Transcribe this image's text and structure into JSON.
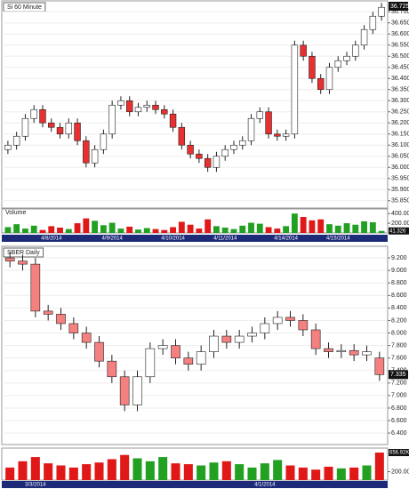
{
  "chart_data": [
    {
      "type": "candlestick",
      "title": "Si 60 Minute",
      "volume_title": "Volume",
      "categories": [
        null,
        null,
        null,
        null,
        null,
        "4/8/2014",
        null,
        null,
        null,
        null,
        null,
        null,
        "4/9/2014",
        null,
        null,
        null,
        null,
        null,
        null,
        "4/10/2014",
        null,
        null,
        null,
        null,
        null,
        "4/11/2014",
        null,
        null,
        null,
        null,
        null,
        null,
        "4/14/2014",
        null,
        null,
        null,
        null,
        null,
        "4/15/2014",
        null,
        null,
        null,
        null,
        null
      ],
      "open": [
        36.08,
        36.1,
        36.14,
        36.22,
        36.26,
        36.2,
        36.18,
        36.15,
        36.2,
        36.12,
        36.02,
        36.08,
        36.15,
        36.28,
        36.3,
        36.25,
        36.27,
        36.28,
        36.26,
        36.24,
        36.18,
        36.1,
        36.06,
        36.04,
        36.0,
        36.05,
        36.08,
        36.1,
        36.12,
        36.22,
        36.25,
        36.15,
        36.14,
        36.15,
        36.55,
        36.5,
        36.4,
        36.35,
        36.45,
        36.48,
        36.5,
        36.55,
        36.62,
        36.68
      ],
      "high": [
        36.12,
        36.16,
        36.24,
        36.28,
        36.28,
        36.22,
        36.2,
        36.22,
        36.22,
        36.14,
        36.1,
        36.17,
        36.3,
        36.32,
        36.32,
        36.29,
        36.3,
        36.3,
        36.28,
        36.26,
        36.2,
        36.12,
        36.08,
        36.06,
        36.07,
        36.1,
        36.12,
        36.14,
        36.24,
        36.27,
        36.27,
        36.17,
        36.17,
        36.57,
        36.57,
        36.52,
        36.42,
        36.47,
        36.5,
        36.52,
        36.57,
        36.64,
        36.7,
        36.74
      ],
      "low": [
        36.06,
        36.08,
        36.12,
        36.2,
        36.18,
        36.16,
        36.13,
        36.13,
        36.1,
        36.0,
        36.0,
        36.06,
        36.13,
        36.26,
        36.23,
        36.23,
        36.25,
        36.24,
        36.22,
        36.16,
        36.08,
        36.04,
        36.02,
        35.98,
        35.98,
        36.03,
        36.06,
        36.08,
        36.1,
        36.2,
        36.13,
        36.12,
        36.12,
        36.13,
        36.48,
        36.38,
        36.33,
        36.33,
        36.43,
        36.46,
        36.48,
        36.53,
        36.6,
        36.66
      ],
      "close": [
        36.1,
        36.14,
        36.22,
        36.26,
        36.2,
        36.18,
        36.15,
        36.2,
        36.12,
        36.02,
        36.08,
        36.15,
        36.28,
        36.3,
        36.25,
        36.27,
        36.28,
        36.26,
        36.24,
        36.18,
        36.1,
        36.06,
        36.04,
        36.0,
        36.05,
        36.08,
        36.1,
        36.12,
        36.22,
        36.25,
        36.15,
        36.14,
        36.15,
        36.55,
        36.5,
        36.4,
        36.35,
        36.45,
        36.48,
        36.5,
        36.55,
        36.62,
        36.68,
        36.72
      ],
      "up_color": "#ffffff",
      "down_color": "#e83030",
      "ylim": [
        35.825,
        36.745
      ],
      "yticks": [
        {
          "value": 36.7,
          "label": "36.700"
        },
        {
          "value": 36.65,
          "label": "36.650"
        },
        {
          "value": 36.6,
          "label": "36.600"
        },
        {
          "value": 36.55,
          "label": "36.550"
        },
        {
          "value": 36.5,
          "label": "36.500"
        },
        {
          "value": 36.45,
          "label": "36.450"
        },
        {
          "value": 36.4,
          "label": "36.400"
        },
        {
          "value": 36.35,
          "label": "36.350"
        },
        {
          "value": 36.3,
          "label": "36.300"
        },
        {
          "value": 36.25,
          "label": "36.250"
        },
        {
          "value": 36.2,
          "label": "36.200"
        },
        {
          "value": 36.15,
          "label": "36.150"
        },
        {
          "value": 36.1,
          "label": "36.100"
        },
        {
          "value": 36.05,
          "label": "36.050"
        },
        {
          "value": 36,
          "label": "36.000"
        },
        {
          "value": 35.95,
          "label": "35.950"
        },
        {
          "value": 35.9,
          "label": "35.900"
        },
        {
          "value": 35.85,
          "label": "35.850"
        }
      ],
      "last": {
        "value": 36.725,
        "label": "36.725"
      },
      "volume": {
        "values": [
          120000,
          180000,
          90000,
          150000,
          60000,
          140000,
          110000,
          80000,
          200000,
          300000,
          250000,
          160000,
          210000,
          90000,
          130000,
          70000,
          100000,
          80000,
          60000,
          120000,
          230000,
          170000,
          90000,
          280000,
          140000,
          110000,
          80000,
          150000,
          210000,
          190000,
          120000,
          90000,
          140000,
          400000,
          330000,
          260000,
          280000,
          180000,
          150000,
          200000,
          170000,
          240000,
          220000,
          41326
        ],
        "up_color": "#22a022",
        "down_color": "#e01818",
        "ylim": [
          0,
          440000
        ],
        "yticks": [
          {
            "value": 400000,
            "label": "400.000"
          },
          {
            "value": 200000,
            "label": "200.000"
          }
        ],
        "last": {
          "value": 41326,
          "label": "41.326"
        }
      }
    },
    {
      "type": "candlestick",
      "title": "SBER Daily",
      "categories": [
        null,
        null,
        "3/3/2014",
        null,
        null,
        null,
        null,
        null,
        null,
        null,
        null,
        null,
        null,
        null,
        null,
        null,
        null,
        null,
        null,
        null,
        "4/1/2014",
        null,
        null,
        null,
        null,
        null,
        null,
        null,
        null,
        null
      ],
      "open": [
        9.2,
        9.15,
        9.1,
        8.35,
        8.3,
        8.15,
        8.0,
        7.85,
        7.55,
        7.3,
        6.85,
        7.3,
        7.75,
        7.8,
        7.6,
        7.5,
        7.7,
        7.95,
        7.85,
        7.95,
        8.0,
        8.15,
        8.25,
        8.2,
        8.05,
        7.75,
        7.7,
        7.72,
        7.65,
        7.6
      ],
      "high": [
        9.3,
        9.25,
        9.2,
        8.45,
        8.4,
        8.25,
        8.1,
        7.95,
        7.65,
        7.4,
        7.4,
        7.85,
        7.9,
        7.9,
        7.7,
        7.8,
        8.05,
        8.05,
        8.05,
        8.1,
        8.25,
        8.35,
        8.35,
        8.3,
        8.15,
        7.85,
        7.82,
        7.82,
        7.8,
        7.7
      ],
      "low": [
        9.05,
        9.0,
        8.25,
        8.2,
        8.05,
        7.9,
        7.75,
        7.45,
        7.2,
        6.75,
        6.75,
        7.2,
        7.65,
        7.5,
        7.4,
        7.4,
        7.6,
        7.75,
        7.75,
        7.85,
        7.9,
        8.05,
        8.1,
        7.95,
        7.65,
        7.6,
        7.6,
        7.55,
        7.55,
        7.235
      ],
      "close": [
        9.15,
        9.1,
        8.35,
        8.3,
        8.15,
        8.0,
        7.85,
        7.55,
        7.3,
        6.85,
        7.3,
        7.75,
        7.8,
        7.6,
        7.5,
        7.7,
        7.95,
        7.85,
        7.95,
        8.0,
        8.15,
        8.25,
        8.2,
        8.05,
        7.75,
        7.7,
        7.72,
        7.65,
        7.7,
        7.335
      ],
      "up_color": "#ffffff",
      "down_color": "#f48080",
      "ylim": [
        6.245,
        9.315
      ],
      "yticks": [
        {
          "value": 9.2,
          "label": "9.200"
        },
        {
          "value": 9,
          "label": "9.000"
        },
        {
          "value": 8.8,
          "label": "8.800"
        },
        {
          "value": 8.6,
          "label": "8.600"
        },
        {
          "value": 8.4,
          "label": "8.400"
        },
        {
          "value": 8.2,
          "label": "8.200"
        },
        {
          "value": 8,
          "label": "8.000"
        },
        {
          "value": 7.8,
          "label": "7.800"
        },
        {
          "value": 7.6,
          "label": "7.600"
        },
        {
          "value": 7.4,
          "label": "7.400"
        },
        {
          "value": 7.2,
          "label": "7.200"
        },
        {
          "value": 7,
          "label": "7.000"
        },
        {
          "value": 6.8,
          "label": "6.800"
        },
        {
          "value": 6.6,
          "label": "6.600"
        },
        {
          "value": 6.4,
          "label": "6.400"
        }
      ],
      "last": {
        "value": 7.335,
        "label": "7.335"
      },
      "volume": {
        "values": [
          300000,
          450000,
          550000,
          400000,
          350000,
          300000,
          380000,
          420000,
          500000,
          600000,
          520000,
          450000,
          550000,
          400000,
          380000,
          350000,
          420000,
          450000,
          380000,
          300000,
          400000,
          480000,
          350000,
          300000,
          250000,
          320000,
          280000,
          300000,
          350000,
          656920
        ],
        "up_color": "#22a022",
        "down_color": "#e01818",
        "ylim": [
          0,
          700000
        ],
        "yticks": [
          {
            "value": 200000,
            "label": "200.00K"
          }
        ],
        "last": {
          "value": 656920,
          "label": "656.92K"
        }
      }
    }
  ]
}
